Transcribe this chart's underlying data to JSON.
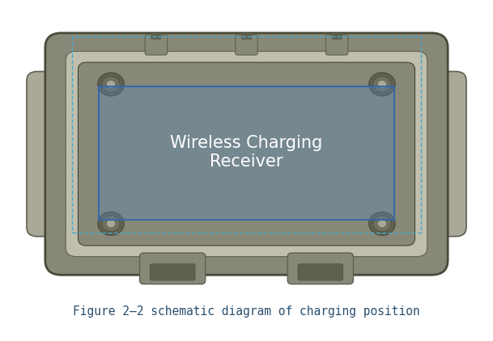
{
  "background_color": "#dde8ef",
  "figure_bg": "#ffffff",
  "caption_bg": "#f0f0f0",
  "device_body": "#888878",
  "device_dark": "#606050",
  "device_light": "#aaa898",
  "device_lighter": "#c0bfae",
  "device_edge": "#4a4a3a",
  "blue_fill": "#5588bb",
  "blue_fill_alpha": 0.35,
  "blue_border": "#3366aa",
  "blue_border_alpha": 0.9,
  "cyan_border": "#44aacc",
  "text_label": "Wireless Charging\nReceiver",
  "text_color": "#ffffff",
  "caption": "Figure 2–2 schematic diagram of charging position",
  "caption_color": "#2a5070",
  "caption_fontsize": 10.5,
  "label_fontsize": 15,
  "fig_width": 6.09,
  "fig_height": 4.22
}
